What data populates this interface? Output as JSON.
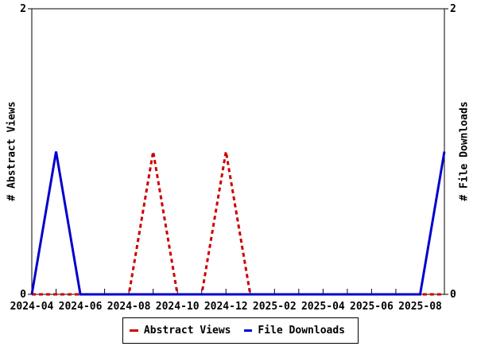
{
  "chart_data": {
    "type": "line",
    "x": [
      "2024-04",
      "2024-05",
      "2024-06",
      "2024-07",
      "2024-08",
      "2024-09",
      "2024-10",
      "2024-11",
      "2024-12",
      "2025-01",
      "2025-02",
      "2025-03",
      "2025-04",
      "2025-05",
      "2025-06",
      "2025-07",
      "2025-08",
      "2025-09"
    ],
    "x_tick_labels": [
      "2024-04",
      "2024-06",
      "2024-08",
      "2024-10",
      "2024-12",
      "2025-02",
      "2025-04",
      "2025-06",
      "2025-08"
    ],
    "series": [
      {
        "name": "Abstract Views",
        "color": "#cc0000",
        "dash": "dashed",
        "axis": "left",
        "values": [
          0,
          0,
          0,
          0,
          0,
          1,
          0,
          0,
          1,
          0,
          0,
          0,
          0,
          0,
          0,
          0,
          0,
          0
        ]
      },
      {
        "name": "File Downloads",
        "color": "#0000cc",
        "dash": "solid",
        "axis": "right",
        "values": [
          0,
          1,
          0,
          0,
          0,
          0,
          0,
          0,
          0,
          0,
          0,
          0,
          0,
          0,
          0,
          0,
          0,
          1
        ]
      }
    ],
    "ylabel_left": "# Abstract Views",
    "ylabel_right": "# File Downloads",
    "ylim": [
      0,
      2
    ],
    "y_ticks": [
      0,
      2
    ],
    "y_tick_labels": [
      "0",
      "2"
    ],
    "grid": false,
    "legend_position": "bottom-center",
    "background_color": "#ffffff",
    "border_color": "#000000",
    "text_color": "#000000"
  }
}
